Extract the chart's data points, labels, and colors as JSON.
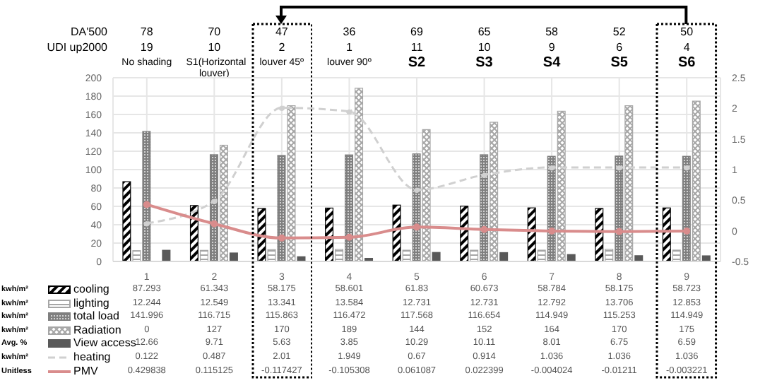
{
  "chart_data": {
    "type": "bar",
    "categories": [
      "1",
      "2",
      "3",
      "4",
      "5",
      "6",
      "7",
      "8",
      "9"
    ],
    "series": [
      {
        "name": "cooling",
        "color": "#000000",
        "values": [
          87.293,
          61.343,
          58.175,
          58.601,
          61.83,
          60.673,
          58.784,
          58.175,
          58.723
        ]
      },
      {
        "name": "lighting",
        "color": "#a6a6a6",
        "values": [
          12.244,
          12.549,
          13.341,
          13.584,
          12.731,
          12.731,
          12.792,
          13.706,
          12.853
        ]
      },
      {
        "name": "total load",
        "color": "#7f7f7f",
        "values": [
          141.996,
          116.715,
          115.863,
          116.472,
          117.568,
          116.654,
          114.949,
          115.253,
          114.949
        ]
      },
      {
        "name": "Radiation",
        "color": "#a6a6a6",
        "values": [
          0,
          127,
          170,
          189,
          144,
          152,
          164,
          170,
          175
        ]
      },
      {
        "name": "View access",
        "color": "#595959",
        "values": [
          12.66,
          9.71,
          5.63,
          3.85,
          10.29,
          10.11,
          8.01,
          6.75,
          6.59
        ]
      },
      {
        "name": "heating",
        "type": "line",
        "axis": "y2",
        "line_style": "dashed",
        "color": "#d0d0d0",
        "values": [
          0.122,
          0.487,
          2.01,
          1.949,
          0.67,
          0.914,
          1.036,
          1.036,
          1.036
        ]
      },
      {
        "name": "PMV",
        "type": "line",
        "axis": "y2",
        "line_style": "solid",
        "color": "#d98c8c",
        "values": [
          0.429838,
          0.115125,
          -0.117427,
          -0.105308,
          0.061087,
          0.022399,
          -0.004024,
          -0.01211,
          -0.003221
        ]
      }
    ],
    "ylim": [
      0,
      200
    ],
    "yticks": [
      0,
      20,
      40,
      60,
      80,
      100,
      120,
      140,
      160,
      180,
      200
    ],
    "y2lim": [
      -0.5,
      2.5
    ],
    "y2ticks": [
      -0.5,
      0,
      0.5,
      1,
      1.5,
      2,
      2.5
    ],
    "grid": true,
    "legend": "bottom left",
    "marker": "circle",
    "data_labels": true,
    "annotations": [
      "kwh/m²",
      "kwh/m²",
      "kwh/m²",
      "kwh/m²",
      "Avg. %",
      "kwh/m²",
      "Unitless",
      "DA'500",
      "78",
      "70",
      "47",
      "36",
      "69",
      "65",
      "58",
      "52",
      "50",
      "UDI up2000",
      "19",
      "10",
      "2",
      "1",
      "11",
      "10",
      "9",
      "6",
      "4",
      "No shading",
      "S1(Horizontal louver)",
      "louver 45º",
      "louver 90º",
      "S2",
      "S3",
      "S4",
      "S5",
      "S6"
    ]
  }
}
